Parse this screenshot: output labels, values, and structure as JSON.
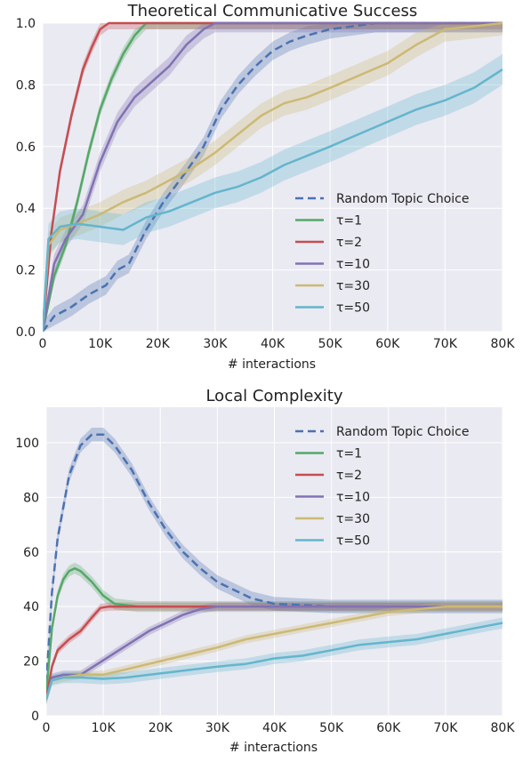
{
  "colors": {
    "background": "#eaeaf2",
    "grid": "#ffffff",
    "random": "#4c72b0",
    "tau1": "#55a868",
    "tau2": "#c44e52",
    "tau10": "#8172b2",
    "tau30": "#ccb974",
    "tau50": "#64b5cd"
  },
  "chart_data": [
    {
      "type": "line",
      "title": "Theoretical Communicative Success",
      "xlabel": "# interactions",
      "ylabel": "",
      "xlim": [
        0,
        80000
      ],
      "ylim": [
        0,
        1.0
      ],
      "xticks": [
        0,
        10000,
        20000,
        30000,
        40000,
        50000,
        60000,
        70000,
        80000
      ],
      "xtick_labels": [
        "0",
        "10K",
        "20K",
        "30K",
        "40K",
        "50K",
        "60K",
        "70K",
        "80K"
      ],
      "yticks": [
        0,
        0.2,
        0.4,
        0.6,
        0.8,
        1.0
      ],
      "ytick_labels": [
        "0.0",
        "0.2",
        "0.4",
        "0.6",
        "0.8",
        "1.0"
      ],
      "grid": true,
      "legend_position": "lower-right",
      "series": [
        {
          "name": "Random Topic Choice",
          "style": "dashed",
          "color_key": "random",
          "band": 0.03,
          "x": [
            0,
            2000,
            5000,
            8000,
            11000,
            13000,
            15000,
            18000,
            21000,
            25000,
            28000,
            31000,
            34000,
            37000,
            40000,
            43000,
            46000,
            50000,
            54000,
            58000,
            80000
          ],
          "y": [
            0.0,
            0.05,
            0.08,
            0.12,
            0.15,
            0.2,
            0.22,
            0.33,
            0.42,
            0.52,
            0.6,
            0.72,
            0.8,
            0.86,
            0.91,
            0.94,
            0.96,
            0.98,
            0.99,
            1.0,
            1.0
          ]
        },
        {
          "name": "τ=1",
          "style": "solid",
          "color_key": "tau1",
          "band": 0.02,
          "x": [
            0,
            2000,
            4000,
            6000,
            8000,
            10000,
            12000,
            14000,
            16000,
            18000,
            80000
          ],
          "y": [
            0.0,
            0.18,
            0.28,
            0.42,
            0.58,
            0.72,
            0.82,
            0.9,
            0.96,
            1.0,
            1.0
          ]
        },
        {
          "name": "τ=2",
          "style": "solid",
          "color_key": "tau2",
          "band": 0.02,
          "x": [
            0,
            1500,
            3000,
            5000,
            7000,
            8500,
            10000,
            11500,
            80000
          ],
          "y": [
            0.0,
            0.32,
            0.52,
            0.7,
            0.85,
            0.92,
            0.98,
            1.0,
            1.0
          ]
        },
        {
          "name": "τ=10",
          "style": "solid",
          "color_key": "tau10",
          "band": 0.03,
          "x": [
            0,
            2000,
            4000,
            7000,
            10000,
            13000,
            16000,
            19000,
            22000,
            25000,
            28000,
            30000,
            80000
          ],
          "y": [
            0.0,
            0.22,
            0.3,
            0.38,
            0.55,
            0.68,
            0.76,
            0.81,
            0.86,
            0.93,
            0.98,
            1.0,
            1.0
          ]
        },
        {
          "name": "τ=30",
          "style": "solid",
          "color_key": "tau30",
          "band": 0.04,
          "x": [
            0,
            1000,
            3000,
            6000,
            10000,
            14000,
            18000,
            22000,
            26000,
            30000,
            34000,
            38000,
            42000,
            46000,
            50000,
            55000,
            60000,
            65000,
            70000,
            80000
          ],
          "y": [
            0.0,
            0.28,
            0.33,
            0.35,
            0.38,
            0.42,
            0.45,
            0.49,
            0.53,
            0.58,
            0.64,
            0.7,
            0.74,
            0.76,
            0.79,
            0.83,
            0.87,
            0.93,
            0.98,
            1.0
          ]
        },
        {
          "name": "τ=50",
          "style": "solid",
          "color_key": "tau50",
          "band": 0.05,
          "x": [
            0,
            1000,
            3000,
            6000,
            10000,
            14000,
            18000,
            22000,
            26000,
            30000,
            34000,
            38000,
            42000,
            46000,
            50000,
            55000,
            60000,
            65000,
            70000,
            75000,
            80000
          ],
          "y": [
            0.0,
            0.3,
            0.34,
            0.35,
            0.34,
            0.33,
            0.37,
            0.39,
            0.42,
            0.45,
            0.47,
            0.5,
            0.54,
            0.57,
            0.6,
            0.64,
            0.68,
            0.72,
            0.75,
            0.79,
            0.85
          ]
        }
      ]
    },
    {
      "type": "line",
      "title": "Local Complexity",
      "xlabel": "# interactions",
      "ylabel": "",
      "xlim": [
        0,
        80000
      ],
      "ylim": [
        0,
        113
      ],
      "xticks": [
        0,
        10000,
        20000,
        30000,
        40000,
        50000,
        60000,
        70000,
        80000
      ],
      "xtick_labels": [
        "0",
        "10K",
        "20K",
        "30K",
        "40K",
        "50K",
        "60K",
        "70K",
        "80K"
      ],
      "yticks": [
        0,
        20,
        40,
        60,
        80,
        100
      ],
      "ytick_labels": [
        "0",
        "20",
        "40",
        "60",
        "80",
        "100"
      ],
      "grid": true,
      "legend_position": "top-right",
      "series": [
        {
          "name": "Random Topic Choice",
          "style": "dashed",
          "color_key": "random",
          "band": 2.5,
          "x": [
            0,
            1000,
            2000,
            4000,
            6000,
            8000,
            10000,
            12000,
            15000,
            18000,
            21000,
            24000,
            27000,
            30000,
            33000,
            36000,
            40000,
            45000,
            50000,
            80000
          ],
          "y": [
            12,
            45,
            65,
            88,
            99,
            103,
            103,
            99,
            90,
            78,
            68,
            60,
            54,
            49,
            46,
            43,
            41,
            40.5,
            40,
            40
          ]
        },
        {
          "name": "τ=1",
          "style": "solid",
          "color_key": "tau1",
          "band": 2,
          "x": [
            0,
            1000,
            2000,
            3000,
            4000,
            5000,
            6000,
            8000,
            10000,
            12000,
            14000,
            16000,
            18000,
            80000
          ],
          "y": [
            8,
            32,
            44,
            50,
            53,
            54,
            53,
            49,
            44,
            41,
            40.5,
            40,
            40,
            40
          ]
        },
        {
          "name": "τ=2",
          "style": "solid",
          "color_key": "tau2",
          "band": 1.5,
          "x": [
            0,
            1000,
            2000,
            4000,
            6000,
            8000,
            9500,
            11000,
            80000
          ],
          "y": [
            6,
            18,
            24,
            28,
            31,
            36,
            39.5,
            40,
            40
          ]
        },
        {
          "name": "τ=10",
          "style": "solid",
          "color_key": "tau10",
          "band": 1.5,
          "x": [
            0,
            1000,
            3000,
            6000,
            9000,
            12000,
            15000,
            18000,
            21000,
            24000,
            27000,
            30000,
            80000
          ],
          "y": [
            6,
            14,
            15,
            15,
            19,
            23,
            27,
            31,
            34,
            37,
            39,
            40,
            40
          ]
        },
        {
          "name": "τ=30",
          "style": "solid",
          "color_key": "tau30",
          "band": 1.5,
          "x": [
            0,
            1000,
            3000,
            6000,
            10000,
            14000,
            18000,
            22000,
            26000,
            30000,
            35000,
            40000,
            45000,
            50000,
            55000,
            60000,
            65000,
            70000,
            80000
          ],
          "y": [
            6,
            13,
            14,
            15,
            15,
            17,
            19,
            21,
            23,
            25,
            28,
            30,
            32,
            34,
            36,
            38,
            39,
            40,
            40
          ]
        },
        {
          "name": "τ=50",
          "style": "solid",
          "color_key": "tau50",
          "band": 2,
          "x": [
            0,
            1000,
            3000,
            6000,
            10000,
            14000,
            18000,
            22000,
            26000,
            30000,
            35000,
            40000,
            45000,
            50000,
            55000,
            60000,
            65000,
            70000,
            75000,
            80000
          ],
          "y": [
            6,
            13,
            14,
            14,
            13.5,
            14,
            15,
            16,
            17,
            18,
            19,
            21,
            22,
            24,
            26,
            27,
            28,
            30,
            32,
            34
          ]
        }
      ]
    }
  ]
}
